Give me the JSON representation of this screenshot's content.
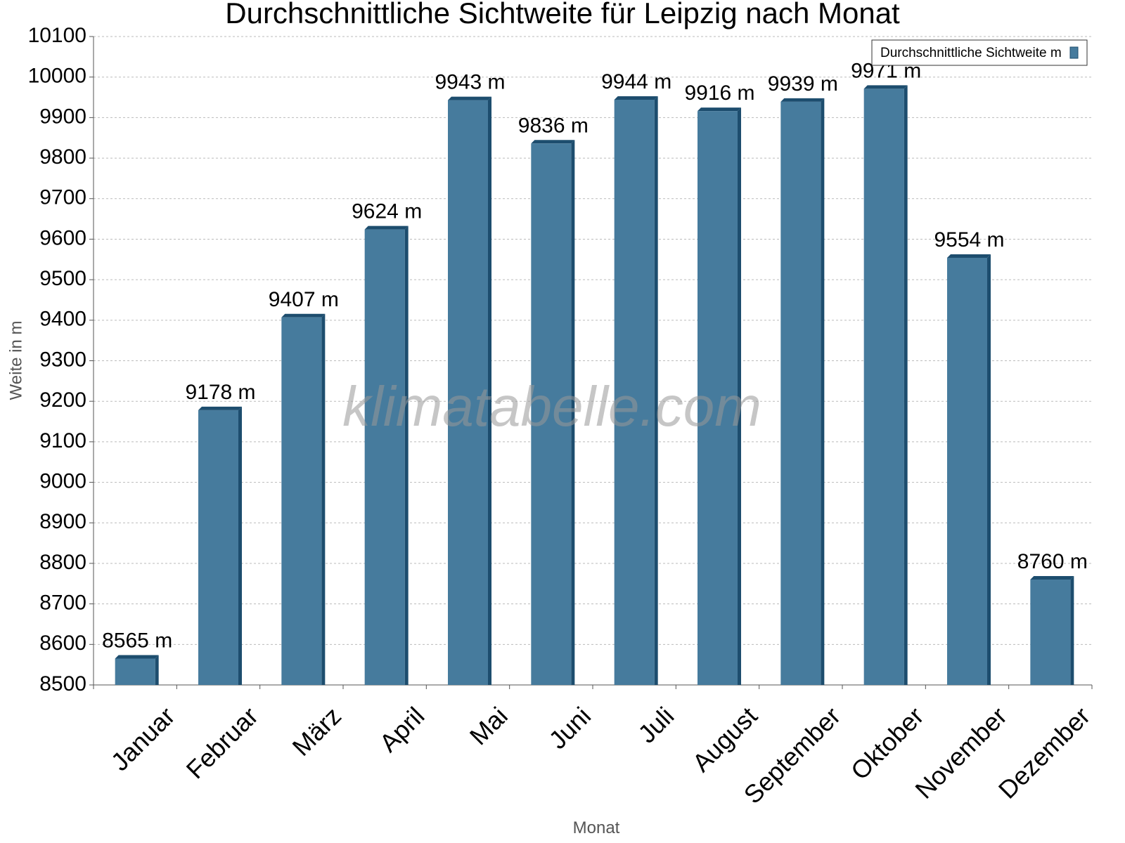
{
  "chart_data": {
    "type": "bar",
    "title": "Durchschnittliche Sichtweite für Leipzig nach Monat",
    "x_label": "Monat",
    "y_label": "Weite in m",
    "watermark": "klimatabelle.com",
    "categories": [
      "Januar",
      "Februar",
      "März",
      "April",
      "Mai",
      "Juni",
      "Juli",
      "August",
      "September",
      "Oktober",
      "November",
      "Dezember"
    ],
    "series": [
      {
        "name": "Durchschnittliche Sichtweite m",
        "color": "#467b9d",
        "values": [
          8565,
          9178,
          9407,
          9624,
          9943,
          9836,
          9944,
          9916,
          9939,
          9971,
          9554,
          8760
        ],
        "value_labels": [
          "8565 m",
          "9178 m",
          "9407 m",
          "9624 m",
          "9943 m",
          "9836 m",
          "9944 m",
          "9916 m",
          "9939 m",
          "9971 m",
          "9554 m",
          "8760 m"
        ]
      }
    ],
    "ylim": [
      8500,
      10100
    ],
    "yticks": [
      8500,
      8600,
      8700,
      8800,
      8900,
      9000,
      9100,
      9200,
      9300,
      9400,
      9500,
      9600,
      9700,
      9800,
      9900,
      10000,
      10100
    ],
    "grid": true,
    "legend": "top-right"
  }
}
